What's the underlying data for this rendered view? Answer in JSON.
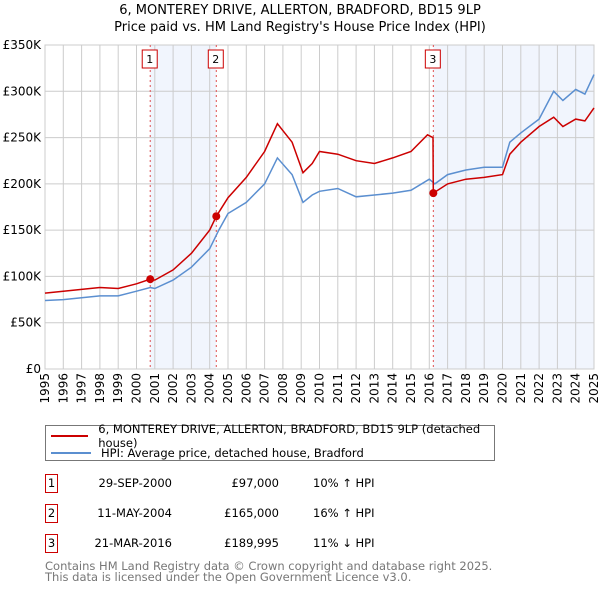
{
  "title_line1": "6, MONTEREY DRIVE, ALLERTON, BRADFORD, BD15 9LP",
  "title_line2": "Price paid vs. HM Land Registry's House Price Index (HPI)",
  "chart_data": {
    "type": "line",
    "title": "6, MONTEREY DRIVE, ALLERTON, BRADFORD, BD15 9LP — Price paid vs. HM Land Registry's House Price Index (HPI)",
    "xlim": [
      1995,
      2025
    ],
    "ylim": [
      0,
      350000
    ],
    "x_ticks": [
      "1995",
      "1996",
      "1997",
      "1998",
      "1999",
      "2000",
      "2001",
      "2002",
      "2003",
      "2004",
      "2005",
      "2006",
      "2007",
      "2008",
      "2009",
      "2010",
      "2011",
      "2012",
      "2013",
      "2014",
      "2015",
      "2016",
      "2017",
      "2018",
      "2019",
      "2020",
      "2021",
      "2022",
      "2023",
      "2024",
      "2025"
    ],
    "y_ticks": [
      {
        "value": 0,
        "label": "£0"
      },
      {
        "value": 50000,
        "label": "£50K"
      },
      {
        "value": 100000,
        "label": "£100K"
      },
      {
        "value": 150000,
        "label": "£150K"
      },
      {
        "value": 200000,
        "label": "£200K"
      },
      {
        "value": 250000,
        "label": "£250K"
      },
      {
        "value": 300000,
        "label": "£300K"
      },
      {
        "value": 350000,
        "label": "£350K"
      }
    ],
    "grid": true,
    "series": [
      {
        "name": "6, MONTEREY DRIVE, ALLERTON, BRADFORD, BD15 9LP (detached house)",
        "color": "#cc0000",
        "x": [
          1995,
          1996,
          1997,
          1998,
          1999,
          2000,
          2000.75,
          2001,
          2002,
          2003,
          2004,
          2004.36,
          2005,
          2006,
          2007,
          2007.7,
          2008.5,
          2009.1,
          2009.6,
          2010,
          2011,
          2012,
          2013,
          2014,
          2015,
          2015.9,
          2016.2,
          2016.22,
          2017,
          2018,
          2019,
          2020,
          2020.4,
          2021,
          2022,
          2022.8,
          2023.3,
          2024,
          2024.5,
          2025
        ],
        "y": [
          82000,
          84000,
          86000,
          88000,
          87000,
          92000,
          97000,
          96000,
          107000,
          125000,
          150000,
          165000,
          185000,
          207000,
          235000,
          265000,
          245000,
          212000,
          222000,
          235000,
          232000,
          225000,
          222000,
          228000,
          235000,
          253000,
          250000,
          190000,
          200000,
          205000,
          207000,
          210000,
          232000,
          245000,
          262000,
          272000,
          262000,
          270000,
          268000,
          282000
        ]
      },
      {
        "name": "HPI: Average price, detached house, Bradford",
        "color": "#5b8fd0",
        "x": [
          1995,
          1996,
          1997,
          1998,
          1999,
          2000,
          2000.75,
          2001,
          2002,
          2003,
          2004,
          2004.5,
          2005,
          2006,
          2007,
          2007.7,
          2008.5,
          2009.1,
          2009.6,
          2010,
          2011,
          2012,
          2013,
          2014,
          2015,
          2016,
          2016.3,
          2017,
          2018,
          2019,
          2020,
          2020.4,
          2021,
          2022,
          2022.8,
          2023.3,
          2024,
          2024.5,
          2025
        ],
        "y": [
          74000,
          75000,
          77000,
          79000,
          79000,
          84000,
          88000,
          87000,
          96000,
          110000,
          130000,
          150000,
          168000,
          180000,
          200000,
          228000,
          210000,
          180000,
          188000,
          192000,
          195000,
          186000,
          188000,
          190000,
          193000,
          205000,
          200000,
          210000,
          215000,
          218000,
          218000,
          245000,
          255000,
          270000,
          300000,
          290000,
          302000,
          297000,
          318000
        ]
      }
    ],
    "sales": [
      {
        "label": "1",
        "x": 2000.75,
        "price": 97000
      },
      {
        "label": "2",
        "x": 2004.36,
        "price": 165000
      },
      {
        "label": "3",
        "x": 2016.22,
        "price": 189995
      }
    ],
    "shaded_ranges": [
      [
        2000.75,
        2004.36
      ],
      [
        2016.22,
        2025
      ]
    ],
    "legend_placement": "below"
  },
  "legend": {
    "property": "6, MONTEREY DRIVE, ALLERTON, BRADFORD, BD15 9LP (detached house)",
    "hpi": "HPI: Average price, detached house, Bradford"
  },
  "transactions": [
    {
      "num": "1",
      "date": "29-SEP-2000",
      "price": "£97,000",
      "hpi": "10% ↑ HPI"
    },
    {
      "num": "2",
      "date": "11-MAY-2004",
      "price": "£165,000",
      "hpi": "16% ↑ HPI"
    },
    {
      "num": "3",
      "date": "21-MAR-2016",
      "price": "£189,995",
      "hpi": "11% ↓ HPI"
    }
  ],
  "footer_line1": "Contains HM Land Registry data © Crown copyright and database right 2025.",
  "footer_line2": "This data is licensed under the Open Government Licence v3.0."
}
